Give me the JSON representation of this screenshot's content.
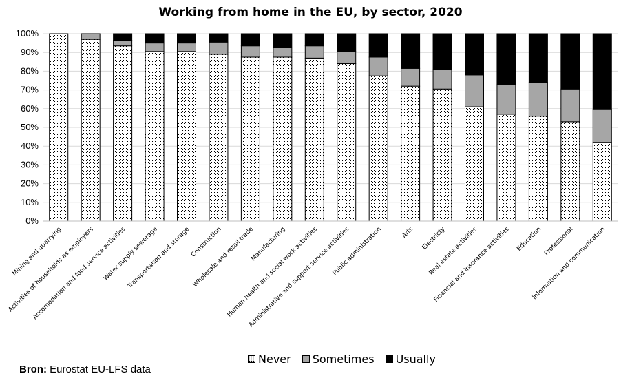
{
  "chart_data": {
    "type": "bar",
    "stacked": true,
    "title": "Working from home in the EU, by sector, 2020",
    "xlabel": "",
    "ylabel": "",
    "ylim": [
      0,
      100
    ],
    "y_unit": "%",
    "y_ticks": [
      "0%",
      "10%",
      "20%",
      "30%",
      "40%",
      "50%",
      "60%",
      "70%",
      "80%",
      "90%",
      "100%"
    ],
    "categories": [
      "Mining and quarrying",
      "Activities of households as employers",
      "Accomodation and food service activities",
      "Water supply sewerage",
      "Transportation and storage",
      "Construction",
      "Wholesale and retail trade",
      "Manufacturing",
      "Human health and social work activities",
      "Administrative and support service activities",
      "Public administration",
      "Arts",
      "Electricty",
      "Real estate activities",
      "Financial and insurance activities",
      "Education",
      "Professional",
      "Information and communication"
    ],
    "series": [
      {
        "name": "Never",
        "color": "#ffffff",
        "pattern": "dotted",
        "values": [
          100,
          97,
          93.5,
          90.5,
          90.5,
          89,
          87.5,
          87.5,
          87,
          84,
          77.5,
          72,
          70.5,
          61,
          57,
          56,
          53,
          42
        ]
      },
      {
        "name": "Sometimes",
        "color": "#a6a6a6",
        "values": [
          0,
          3,
          3,
          4.5,
          4.5,
          6.5,
          6,
          5,
          6.5,
          6.5,
          10,
          9.5,
          10.5,
          17,
          16,
          18,
          17.5,
          17.5
        ]
      },
      {
        "name": "Usually",
        "color": "#000000",
        "values": [
          0,
          0,
          3.5,
          5,
          5,
          4.5,
          6.5,
          7.5,
          6.5,
          9.5,
          12.5,
          18.5,
          19,
          22,
          27,
          26,
          29.5,
          40.5
        ]
      }
    ],
    "legend_position": "bottom",
    "grid": true
  },
  "source": {
    "label": "Bron:",
    "text": " Eurostat EU-LFS data"
  }
}
